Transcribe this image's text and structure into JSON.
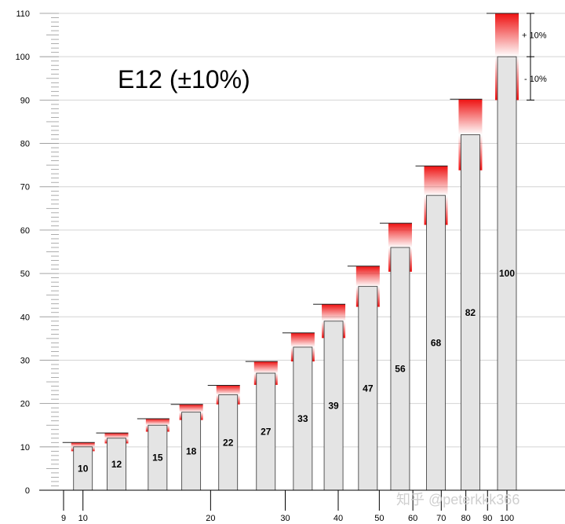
{
  "chart_data": {
    "type": "bar",
    "title": "E12 (±10%)",
    "x_scale": "log",
    "x_tick_labels": [
      "9",
      "10",
      "20",
      "30",
      "40",
      "50",
      "60",
      "70",
      "80",
      "90",
      "100"
    ],
    "x_tick_values": [
      9,
      10,
      20,
      30,
      40,
      50,
      60,
      70,
      80,
      90,
      100
    ],
    "ylim": [
      0,
      110
    ],
    "y_ticks": [
      0,
      10,
      20,
      30,
      40,
      50,
      60,
      70,
      80,
      90,
      100,
      110
    ],
    "y_tick_labels": [
      "0",
      "10",
      "20",
      "30",
      "40",
      "50",
      "60",
      "70",
      "80",
      "90",
      "100",
      "110"
    ],
    "grid": true,
    "tolerance_percent": 10,
    "categories": [
      "10",
      "12",
      "15",
      "18",
      "22",
      "27",
      "33",
      "39",
      "47",
      "56",
      "68",
      "82",
      "100"
    ],
    "values": [
      10,
      12,
      15,
      18,
      22,
      27,
      33,
      39,
      47,
      56,
      68,
      82,
      100
    ],
    "annotations": {
      "plus": "+ 10%",
      "minus": "- 10%"
    },
    "colors": {
      "bar_fill": "#e4e4e4",
      "bar_edge": "#333333",
      "band": "#ee1111",
      "grid": "#d4d4d4"
    },
    "watermark": "知乎 @peterkkk366"
  }
}
